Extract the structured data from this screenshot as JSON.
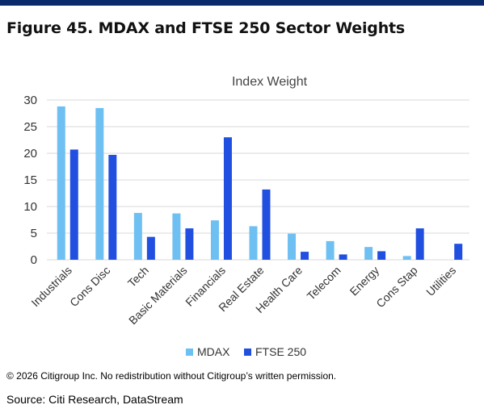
{
  "figure_title": "Figure 45. MDAX and FTSE 250 Sector Weights",
  "copyright": "© 2026 Citigroup Inc. No redistribution without Citigroup’s written permission.",
  "source": "Source: Citi Research, DataStream",
  "colors": {
    "mdax": "#6ec0f2",
    "ftse": "#2150e0",
    "rule": "#0a2a6b",
    "grid": "#d9d9d9"
  },
  "chart_data": {
    "type": "bar",
    "title": "Index Weight",
    "xlabel": "",
    "ylabel": "",
    "ylim": [
      0,
      30
    ],
    "yticks": [
      0,
      5,
      10,
      15,
      20,
      25,
      30
    ],
    "grid": true,
    "legend_position": "bottom",
    "categories": [
      "Industrials",
      "Cons Disc",
      "Tech",
      "Basic Materials",
      "Financials",
      "Real Estate",
      "Health Care",
      "Telecom",
      "Energy",
      "Cons Stap",
      "Utilities"
    ],
    "series": [
      {
        "name": "MDAX",
        "values": [
          28.8,
          28.5,
          8.8,
          8.7,
          7.4,
          6.3,
          4.9,
          3.5,
          2.4,
          0.7,
          0
        ]
      },
      {
        "name": "FTSE 250",
        "values": [
          20.7,
          19.7,
          4.3,
          5.9,
          23.0,
          13.2,
          1.5,
          1.0,
          1.6,
          5.9,
          3.0
        ]
      }
    ]
  }
}
